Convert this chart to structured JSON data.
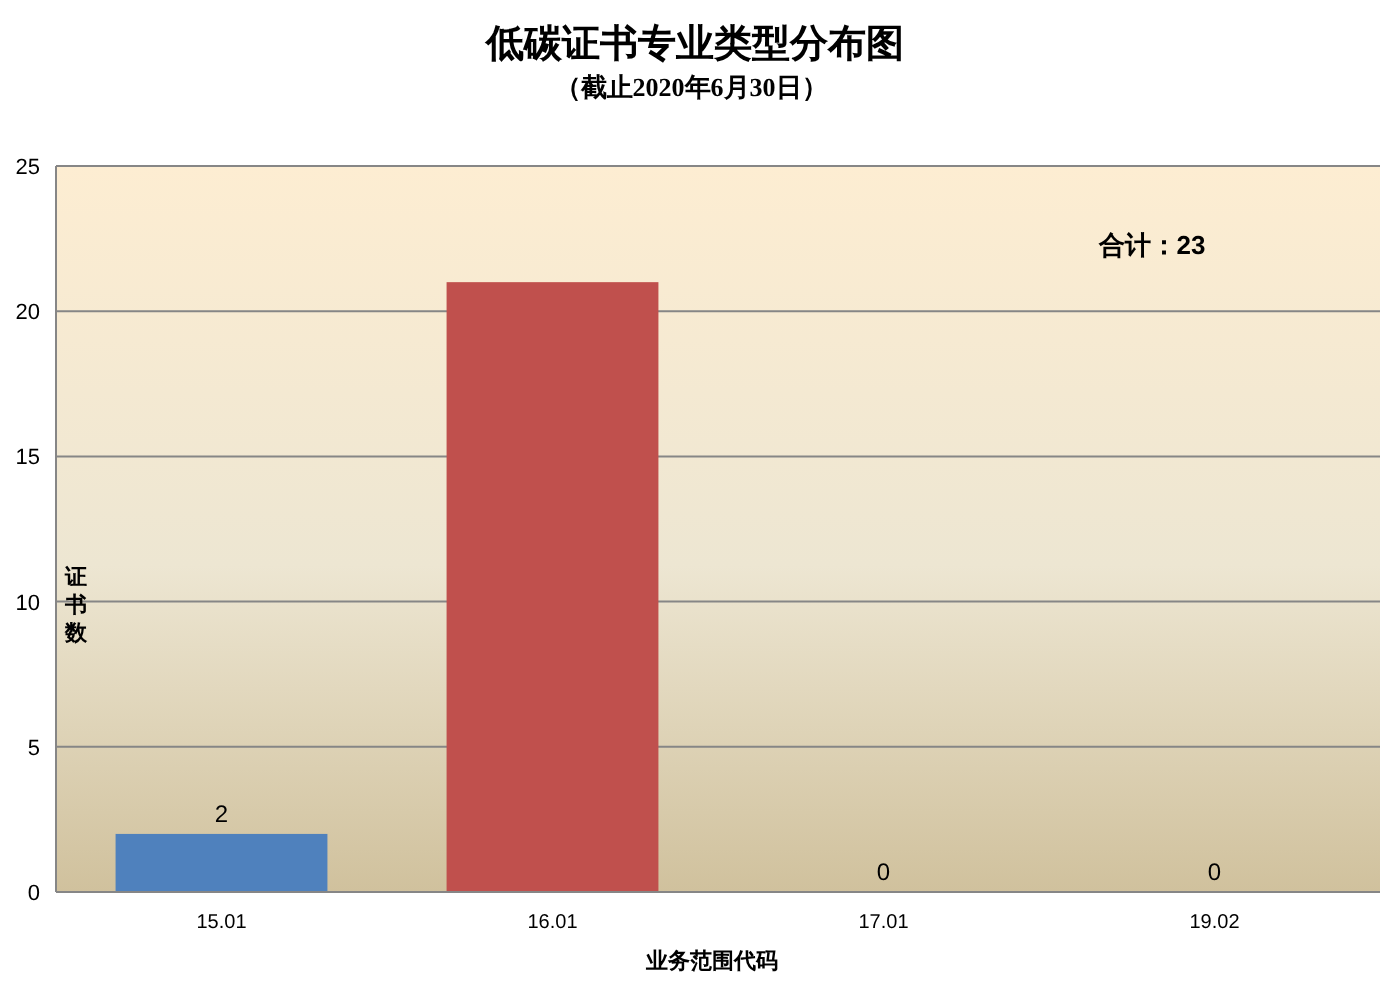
{
  "chart_data": {
    "type": "bar",
    "title": "低碳证书专业类型分布图",
    "subtitle": "（截止2020年6月30日）",
    "xlabel": "业务范围代码",
    "ylabel": "证书数",
    "categories": [
      "15.01",
      "16.01",
      "17.01",
      "19.02"
    ],
    "values": [
      2,
      21,
      0,
      0
    ],
    "colors": [
      "#4f81bd",
      "#c0504d",
      "#9bbb59",
      "#8064a2"
    ],
    "value_labels": [
      "2",
      null,
      "0",
      "0"
    ],
    "annotations": [
      "合计：23"
    ],
    "ylim": [
      0,
      25
    ],
    "yticks": [
      0,
      5,
      10,
      15,
      20,
      25
    ],
    "grid": "y"
  }
}
